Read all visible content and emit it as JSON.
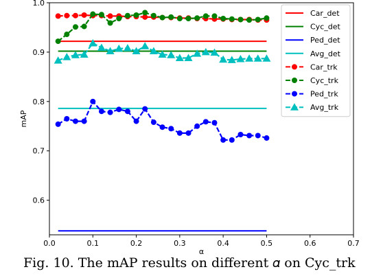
{
  "chart_data": {
    "type": "line",
    "xlabel": "α",
    "ylabel": "mAP",
    "xlim": [
      0.0,
      0.7
    ],
    "ylim": [
      0.53,
      1.0
    ],
    "xticks": [
      "0.0",
      "0.1",
      "0.2",
      "0.3",
      "0.4",
      "0.5",
      "0.6",
      "0.7"
    ],
    "yticks": [
      "0.6",
      "0.7",
      "0.8",
      "0.9",
      "1.0"
    ],
    "grid": false,
    "legend_position": "top-right",
    "x": [
      0.02,
      0.04,
      0.06,
      0.08,
      0.1,
      0.12,
      0.14,
      0.16,
      0.18,
      0.2,
      0.22,
      0.24,
      0.26,
      0.28,
      0.3,
      0.32,
      0.34,
      0.36,
      0.38,
      0.4,
      0.42,
      0.44,
      0.46,
      0.48,
      0.5
    ],
    "series": [
      {
        "name": "Car_det",
        "kind": "hline",
        "y": 0.922,
        "color": "#ff0000",
        "marker": "none"
      },
      {
        "name": "Cyc_det",
        "kind": "hline",
        "y": 0.902,
        "color": "#008000",
        "marker": "none"
      },
      {
        "name": "Ped_det",
        "kind": "hline",
        "y": 0.538,
        "color": "#0000ff",
        "marker": "none"
      },
      {
        "name": "Avg_det",
        "kind": "hline",
        "y": 0.786,
        "color": "#00bfbf",
        "marker": "none"
      },
      {
        "name": "Car_trk",
        "kind": "line",
        "color": "#ff0000",
        "marker": "circle",
        "values": [
          0.973,
          0.974,
          0.974,
          0.975,
          0.974,
          0.974,
          0.973,
          0.973,
          0.972,
          0.972,
          0.971,
          0.971,
          0.97,
          0.97,
          0.969,
          0.969,
          0.968,
          0.968,
          0.967,
          0.967,
          0.966,
          0.966,
          0.966,
          0.965,
          0.965
        ]
      },
      {
        "name": "Cyc_trk",
        "kind": "line",
        "color": "#008000",
        "marker": "circle",
        "values": [
          0.922,
          0.936,
          0.951,
          0.952,
          0.977,
          0.976,
          0.959,
          0.968,
          0.974,
          0.975,
          0.98,
          0.974,
          0.97,
          0.971,
          0.968,
          0.968,
          0.969,
          0.973,
          0.973,
          0.968,
          0.967,
          0.966,
          0.965,
          0.966,
          0.969
        ]
      },
      {
        "name": "Ped_trk",
        "kind": "line",
        "color": "#0000ff",
        "marker": "circle",
        "values": [
          0.754,
          0.765,
          0.76,
          0.76,
          0.8,
          0.78,
          0.778,
          0.784,
          0.78,
          0.76,
          0.785,
          0.758,
          0.748,
          0.745,
          0.736,
          0.736,
          0.75,
          0.759,
          0.757,
          0.722,
          0.722,
          0.733,
          0.731,
          0.731,
          0.726
        ]
      },
      {
        "name": "Avg_trk",
        "kind": "line",
        "color": "#00bfbf",
        "marker": "triangle",
        "values": [
          0.883,
          0.89,
          0.894,
          0.895,
          0.918,
          0.909,
          0.902,
          0.907,
          0.908,
          0.902,
          0.912,
          0.902,
          0.895,
          0.894,
          0.888,
          0.888,
          0.897,
          0.9,
          0.899,
          0.885,
          0.884,
          0.886,
          0.887,
          0.887,
          0.887
        ]
      }
    ]
  },
  "caption": {
    "text": "Fig. 10.  The mAP results on different  𝛼 on Cyc_trk"
  }
}
